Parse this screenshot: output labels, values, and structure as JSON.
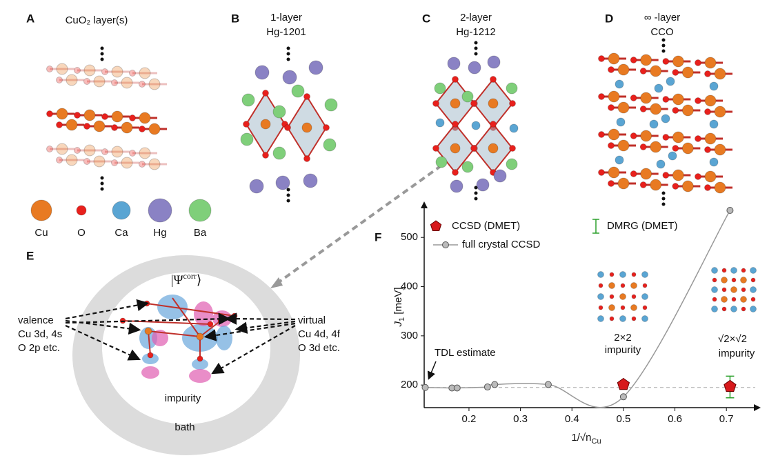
{
  "panels": {
    "A": {
      "letter": "A",
      "title": "CuO₂ layer(s)"
    },
    "B": {
      "letter": "B",
      "title": [
        "1-layer",
        "Hg-1201"
      ]
    },
    "C": {
      "letter": "C",
      "title": [
        "2-layer",
        "Hg-1212"
      ]
    },
    "D": {
      "letter": "D",
      "title": [
        "∞ -layer",
        "CCO"
      ]
    },
    "E": {
      "letter": "E",
      "state": [
        "|Ψ",
        "corr",
        "⟩"
      ],
      "valence": [
        "valence",
        "Cu 3d, 4s",
        "O 2p etc."
      ],
      "virtual": [
        "virtual",
        "Cu 4d, 4f",
        "O 3d etc."
      ],
      "impurity": "impurity",
      "bath": "bath"
    },
    "F": {
      "letter": "F"
    }
  },
  "atoms": [
    {
      "name": "Cu",
      "color": "#e87a22"
    },
    {
      "name": "O",
      "color": "#e8201c"
    },
    {
      "name": "Ca",
      "color": "#5aa5d3"
    },
    {
      "name": "Hg",
      "color": "#8a82c4"
    },
    {
      "name": "Ba",
      "color": "#7fcf7a"
    }
  ],
  "chart_data": {
    "type": "line",
    "xlabel": [
      "1/√n",
      "Cu"
    ],
    "ylabel": [
      "J",
      "1",
      " [meV]"
    ],
    "xlim": [
      0.113,
      0.756
    ],
    "ylim": [
      154,
      562
    ],
    "xticks": [
      0.2,
      0.3,
      0.4,
      0.5,
      0.6,
      0.7
    ],
    "yticks": [
      200,
      300,
      400,
      500
    ],
    "reference_line": 195,
    "series": [
      {
        "name": "CCSD (DMET)",
        "color": "#d7191c",
        "x": [
          0.5,
          0.707
        ],
        "values": [
          201,
          197
        ]
      },
      {
        "name": "full crystal CCSD",
        "color": "#999999",
        "x": [
          0.115,
          0.167,
          0.177,
          0.236,
          0.25,
          0.354,
          0.5,
          0.707
        ],
        "values": [
          195,
          194,
          194,
          196,
          201,
          201,
          176,
          555
        ]
      },
      {
        "name": "DMRG (DMET)",
        "color": "#2ca02c",
        "x": [
          0.707
        ],
        "values": [
          196
        ],
        "errors": [
          22
        ]
      }
    ],
    "annotations": {
      "tdl": "TDL estimate",
      "impurity_2x2": [
        "2×2",
        "impurity"
      ],
      "impurity_sqrt": [
        "√2×√2",
        "impurity"
      ]
    }
  }
}
